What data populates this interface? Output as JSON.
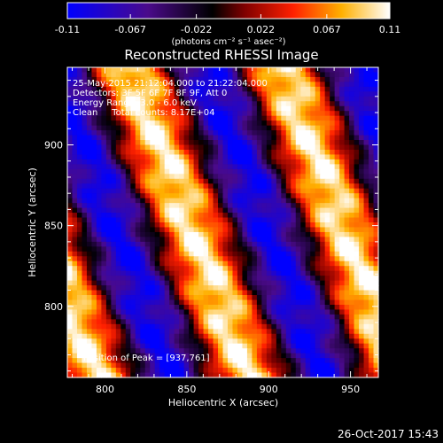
{
  "colorbar": {
    "ticks": [
      "-0.11",
      "-0.067",
      "-0.022",
      "0.022",
      "0.067",
      "0.11"
    ],
    "units": "(photons cm⁻² s⁻¹ asec⁻²)",
    "range": [
      -0.11,
      0.11
    ]
  },
  "chart_data": {
    "type": "heatmap",
    "title": "Reconstructed RHESSI Image",
    "xlabel": "Heliocentric X (arcsec)",
    "ylabel": "Heliocentric Y (arcsec)",
    "xlim": [
      777,
      967
    ],
    "ylim": [
      756,
      948
    ],
    "x_ticks": [
      800,
      850,
      900,
      950
    ],
    "y_ticks": [
      800,
      850,
      900
    ],
    "x_tick_labels": [
      "800",
      "850",
      "900",
      "950"
    ],
    "y_tick_labels": [
      "800",
      "850",
      "900"
    ],
    "peak": [
      937,
      761
    ],
    "annotations": [
      "25-May-2015 21:12:04.000 to 21:22:04.000",
      "Detectors: 3F 5F 6F 7F 8F 9F, Att 0",
      "Energy Range: 3.0 - 6.0 keV",
      "Clean     Total counts: 8.17E+04"
    ],
    "peak_label": "Position of Peak = [937,761]",
    "pattern": {
      "description_free_params": true,
      "min": -0.11,
      "max": 0.11
    }
  },
  "footer": {
    "timestamp": "26-Oct-2017 15:43"
  }
}
